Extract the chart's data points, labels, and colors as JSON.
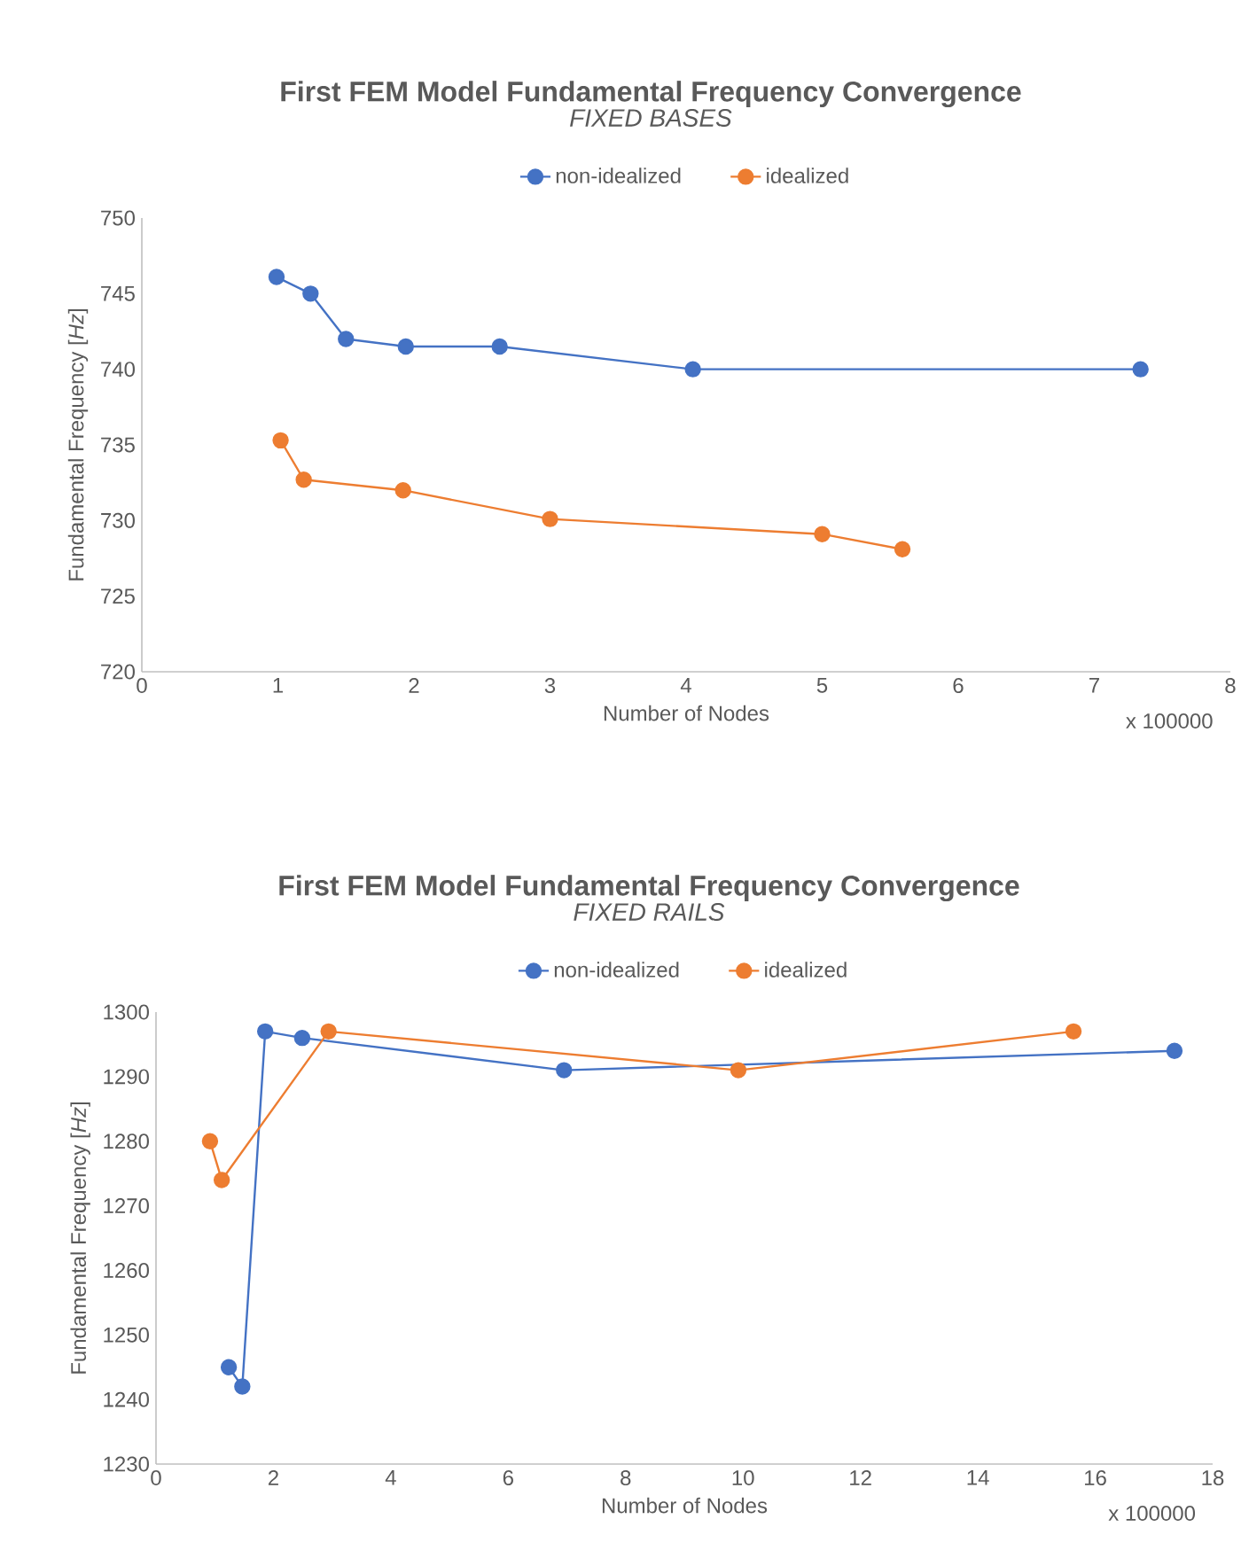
{
  "chart_data": [
    {
      "type": "line",
      "title": "First FEM Model Fundamental Frequency Convergence",
      "subtitle": "FIXED BASES",
      "xlabel": "Number of Nodes",
      "ylabel": "Fundamental Frequency [*Hz*]",
      "annotations": [
        "x 100000"
      ],
      "xlim": [
        0,
        8
      ],
      "xticks": [
        0,
        1,
        2,
        3,
        4,
        5,
        6,
        7,
        8
      ],
      "ylim": [
        720,
        750
      ],
      "yticks": [
        720,
        725,
        730,
        735,
        740,
        745,
        750
      ],
      "legend": "top",
      "marker": "circle",
      "line_style": "solid",
      "series": [
        {
          "name": "non-idealized",
          "color": "#4472c4",
          "x": [
            0.99,
            1.24,
            1.5,
            1.94,
            2.63,
            4.05,
            7.34
          ],
          "values": [
            746.1,
            745,
            742,
            741.5,
            741.5,
            740,
            740
          ]
        },
        {
          "name": "idealized",
          "color": "#ed7d31",
          "x": [
            1.02,
            1.19,
            1.92,
            3.0,
            5.0,
            5.59
          ],
          "values": [
            735.3,
            732.7,
            732,
            730.1,
            729.1,
            728.1
          ]
        }
      ]
    },
    {
      "type": "line",
      "title": "First FEM Model Fundamental Frequency Convergence",
      "subtitle": "FIXED RAILS",
      "xlabel": "Number of Nodes",
      "ylabel": "Fundamental Frequency [*Hz*]",
      "annotations": [
        "x 100000"
      ],
      "xlim": [
        0,
        18
      ],
      "xticks": [
        0,
        2,
        4,
        6,
        8,
        10,
        12,
        14,
        16,
        18
      ],
      "ylim": [
        1230,
        1300
      ],
      "yticks": [
        1230,
        1240,
        1250,
        1260,
        1270,
        1280,
        1290,
        1300
      ],
      "legend": "top",
      "marker": "circle",
      "line_style": "solid",
      "series": [
        {
          "name": "non-idealized",
          "color": "#4472c4",
          "x": [
            1.24,
            1.47,
            1.86,
            2.49,
            6.95,
            17.35
          ],
          "values": [
            1245,
            1242,
            1297,
            1296,
            1291,
            1294
          ]
        },
        {
          "name": "idealized",
          "color": "#ed7d31",
          "x": [
            0.92,
            1.12,
            2.94,
            9.92,
            15.63
          ],
          "values": [
            1280,
            1274,
            1297,
            1291,
            1297
          ]
        }
      ]
    }
  ]
}
